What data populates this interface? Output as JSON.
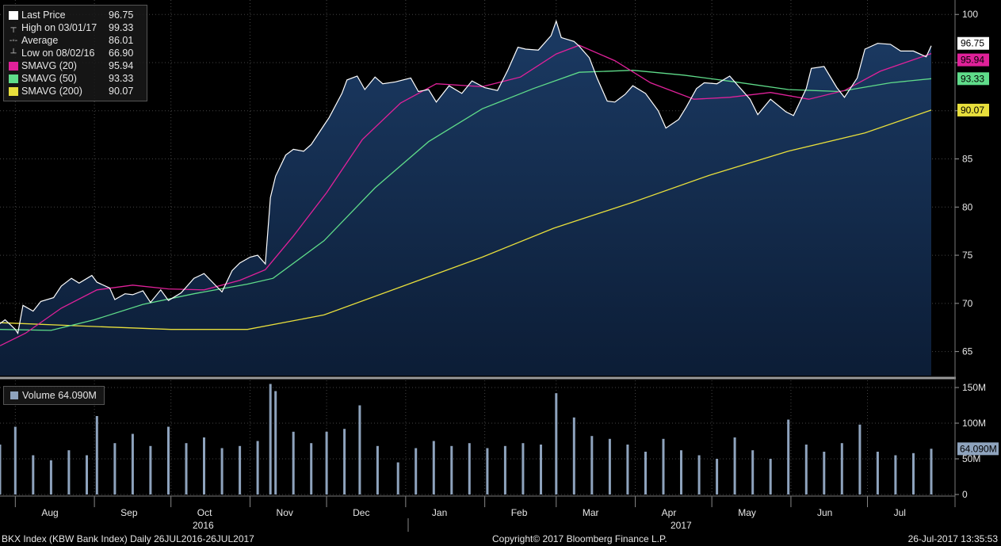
{
  "legend": {
    "last_price_label": "Last Price",
    "last_price_value": "96.75",
    "high_label": "High on 03/01/17",
    "high_value": "99.33",
    "average_label": "Average",
    "average_value": "86.01",
    "low_label": "Low on 08/02/16",
    "low_value": "66.90",
    "sma20_label": "SMAVG (20)",
    "sma20_value": "95.94",
    "sma50_label": "SMAVG (50)",
    "sma50_value": "93.33",
    "sma200_label": "SMAVG (200)",
    "sma200_value": "90.07"
  },
  "volume_legend": {
    "label": "Volume",
    "value": "64.090M"
  },
  "footer": {
    "left": "BKX Index (KBW Bank Index)  Daily 26JUL2016-26JUL2017",
    "center": "Copyright© 2017 Bloomberg Finance L.P.",
    "right": "26-Jul-2017 13:35:53"
  },
  "colors": {
    "price": "#ffffff",
    "area": "#14294a",
    "sma20": "#e0219a",
    "sma50": "#5fdc8a",
    "sma200": "#e8df3c",
    "volume": "#8ea3bd",
    "background": "#000000",
    "plot_background": "#0a0a0a"
  },
  "chart_data": {
    "type": "line",
    "title": "BKX Index (KBW Bank Index)",
    "x_range": [
      "2016-07-26",
      "2017-07-26"
    ],
    "months": [
      "Aug",
      "Sep",
      "Oct",
      "Nov",
      "Dec",
      "Jan",
      "Feb",
      "Mar",
      "Apr",
      "May",
      "Jun",
      "Jul"
    ],
    "years": [
      "2016",
      "2017"
    ],
    "price_axis": {
      "ylim": [
        62.5,
        101.5
      ],
      "ticks": [
        65,
        70,
        75,
        80,
        85,
        90,
        95,
        100
      ],
      "grid": true
    },
    "volume_axis": {
      "ylim": [
        0,
        160
      ],
      "ticks": [
        0,
        50,
        100,
        150
      ],
      "tick_labels": [
        "0",
        "50M",
        "100M",
        "150M"
      ],
      "unit": "M"
    },
    "axis_value_labels": [
      "96.75",
      "95.94",
      "93.33",
      "90.07"
    ],
    "volume_axis_value_label": "64.090M",
    "price": [
      [
        "2016-07-26",
        67.9
      ],
      [
        "2016-07-28",
        68.3
      ],
      [
        "2016-08-01",
        67.3
      ],
      [
        "2016-08-02",
        66.9
      ],
      [
        "2016-08-04",
        69.8
      ],
      [
        "2016-08-08",
        69.2
      ],
      [
        "2016-08-11",
        70.2
      ],
      [
        "2016-08-16",
        70.6
      ],
      [
        "2016-08-19",
        71.8
      ],
      [
        "2016-08-23",
        72.6
      ],
      [
        "2016-08-26",
        72.1
      ],
      [
        "2016-08-31",
        72.9
      ],
      [
        "2016-09-02",
        72.2
      ],
      [
        "2016-09-07",
        71.6
      ],
      [
        "2016-09-09",
        70.4
      ],
      [
        "2016-09-13",
        71.0
      ],
      [
        "2016-09-16",
        70.9
      ],
      [
        "2016-09-20",
        71.3
      ],
      [
        "2016-09-23",
        70.1
      ],
      [
        "2016-09-27",
        71.4
      ],
      [
        "2016-09-30",
        70.3
      ],
      [
        "2016-10-05",
        71.1
      ],
      [
        "2016-10-10",
        72.6
      ],
      [
        "2016-10-14",
        73.1
      ],
      [
        "2016-10-18",
        72.0
      ],
      [
        "2016-10-21",
        71.2
      ],
      [
        "2016-10-25",
        73.4
      ],
      [
        "2016-10-28",
        74.2
      ],
      [
        "2016-11-01",
        74.8
      ],
      [
        "2016-11-04",
        75.0
      ],
      [
        "2016-11-07",
        74.1
      ],
      [
        "2016-11-09",
        81.0
      ],
      [
        "2016-11-11",
        83.2
      ],
      [
        "2016-11-15",
        85.4
      ],
      [
        "2016-11-18",
        86.0
      ],
      [
        "2016-11-22",
        85.8
      ],
      [
        "2016-11-25",
        86.5
      ],
      [
        "2016-11-30",
        88.5
      ],
      [
        "2016-12-02",
        89.3
      ],
      [
        "2016-12-07",
        91.8
      ],
      [
        "2016-12-09",
        93.2
      ],
      [
        "2016-12-13",
        93.6
      ],
      [
        "2016-12-16",
        92.2
      ],
      [
        "2016-12-20",
        93.5
      ],
      [
        "2016-12-23",
        92.8
      ],
      [
        "2016-12-28",
        93.0
      ],
      [
        "2017-01-03",
        93.4
      ],
      [
        "2017-01-06",
        92.0
      ],
      [
        "2017-01-10",
        92.2
      ],
      [
        "2017-01-13",
        90.9
      ],
      [
        "2017-01-18",
        92.6
      ],
      [
        "2017-01-23",
        91.8
      ],
      [
        "2017-01-27",
        93.1
      ],
      [
        "2017-02-01",
        92.4
      ],
      [
        "2017-02-06",
        92.1
      ],
      [
        "2017-02-10",
        94.2
      ],
      [
        "2017-02-14",
        96.6
      ],
      [
        "2017-02-17",
        96.4
      ],
      [
        "2017-02-22",
        96.3
      ],
      [
        "2017-02-27",
        97.8
      ],
      [
        "2017-03-01",
        99.3
      ],
      [
        "2017-03-03",
        97.6
      ],
      [
        "2017-03-08",
        97.2
      ],
      [
        "2017-03-10",
        96.7
      ],
      [
        "2017-03-14",
        95.5
      ],
      [
        "2017-03-17",
        93.4
      ],
      [
        "2017-03-21",
        91.0
      ],
      [
        "2017-03-24",
        90.9
      ],
      [
        "2017-03-28",
        91.7
      ],
      [
        "2017-03-31",
        92.6
      ],
      [
        "2017-04-05",
        91.8
      ],
      [
        "2017-04-10",
        90.0
      ],
      [
        "2017-04-13",
        88.2
      ],
      [
        "2017-04-18",
        89.1
      ],
      [
        "2017-04-21",
        90.4
      ],
      [
        "2017-04-25",
        92.3
      ],
      [
        "2017-04-28",
        92.9
      ],
      [
        "2017-05-03",
        92.8
      ],
      [
        "2017-05-08",
        93.6
      ],
      [
        "2017-05-11",
        92.7
      ],
      [
        "2017-05-16",
        91.2
      ],
      [
        "2017-05-19",
        89.6
      ],
      [
        "2017-05-24",
        91.2
      ],
      [
        "2017-05-30",
        89.9
      ],
      [
        "2017-06-02",
        89.5
      ],
      [
        "2017-06-07",
        92.3
      ],
      [
        "2017-06-09",
        94.4
      ],
      [
        "2017-06-14",
        94.6
      ],
      [
        "2017-06-19",
        92.4
      ],
      [
        "2017-06-22",
        91.4
      ],
      [
        "2017-06-27",
        93.4
      ],
      [
        "2017-06-30",
        96.4
      ],
      [
        "2017-07-05",
        97.0
      ],
      [
        "2017-07-10",
        96.9
      ],
      [
        "2017-07-14",
        96.2
      ],
      [
        "2017-07-19",
        96.2
      ],
      [
        "2017-07-24",
        95.6
      ],
      [
        "2017-07-26",
        96.75
      ]
    ],
    "sma20": [
      [
        "2016-07-26",
        65.6
      ],
      [
        "2016-08-05",
        66.9
      ],
      [
        "2016-08-19",
        69.5
      ],
      [
        "2016-09-02",
        71.4
      ],
      [
        "2016-09-16",
        71.9
      ],
      [
        "2016-09-30",
        71.5
      ],
      [
        "2016-10-14",
        71.4
      ],
      [
        "2016-10-28",
        72.4
      ],
      [
        "2016-11-07",
        73.5
      ],
      [
        "2016-11-18",
        77.0
      ],
      [
        "2016-12-01",
        81.5
      ],
      [
        "2016-12-15",
        87.0
      ],
      [
        "2016-12-30",
        90.8
      ],
      [
        "2017-01-13",
        92.8
      ],
      [
        "2017-01-31",
        92.5
      ],
      [
        "2017-02-15",
        93.5
      ],
      [
        "2017-03-01",
        95.9
      ],
      [
        "2017-03-10",
        96.8
      ],
      [
        "2017-03-24",
        95.2
      ],
      [
        "2017-04-07",
        92.9
      ],
      [
        "2017-04-24",
        91.2
      ],
      [
        "2017-05-08",
        91.4
      ],
      [
        "2017-05-24",
        91.9
      ],
      [
        "2017-06-08",
        91.2
      ],
      [
        "2017-06-22",
        92.1
      ],
      [
        "2017-07-06",
        94.1
      ],
      [
        "2017-07-26",
        95.94
      ]
    ],
    "sma50": [
      [
        "2016-07-26",
        67.3
      ],
      [
        "2016-08-15",
        67.2
      ],
      [
        "2016-09-01",
        68.3
      ],
      [
        "2016-09-20",
        69.9
      ],
      [
        "2016-10-10",
        71.0
      ],
      [
        "2016-10-31",
        72.0
      ],
      [
        "2016-11-10",
        72.6
      ],
      [
        "2016-11-30",
        76.5
      ],
      [
        "2016-12-20",
        82.0
      ],
      [
        "2017-01-10",
        86.8
      ],
      [
        "2017-01-31",
        90.2
      ],
      [
        "2017-02-20",
        92.3
      ],
      [
        "2017-03-10",
        94.0
      ],
      [
        "2017-03-31",
        94.2
      ],
      [
        "2017-04-20",
        93.7
      ],
      [
        "2017-05-10",
        93.0
      ],
      [
        "2017-05-31",
        92.2
      ],
      [
        "2017-06-20",
        92.0
      ],
      [
        "2017-07-10",
        92.9
      ],
      [
        "2017-07-26",
        93.33
      ]
    ],
    "sma200": [
      [
        "2016-07-26",
        68.0
      ],
      [
        "2016-09-01",
        67.6
      ],
      [
        "2016-10-01",
        67.3
      ],
      [
        "2016-10-31",
        67.3
      ],
      [
        "2016-11-30",
        68.8
      ],
      [
        "2016-12-31",
        71.8
      ],
      [
        "2017-01-31",
        74.8
      ],
      [
        "2017-02-28",
        77.8
      ],
      [
        "2017-03-31",
        80.5
      ],
      [
        "2017-04-30",
        83.3
      ],
      [
        "2017-05-31",
        85.8
      ],
      [
        "2017-06-30",
        87.7
      ],
      [
        "2017-07-26",
        90.07
      ]
    ],
    "volume_m": [
      [
        "2016-07-26",
        70
      ],
      [
        "2016-08-01",
        95
      ],
      [
        "2016-08-08",
        55
      ],
      [
        "2016-08-15",
        48
      ],
      [
        "2016-08-22",
        62
      ],
      [
        "2016-08-29",
        55
      ],
      [
        "2016-09-02",
        110
      ],
      [
        "2016-09-09",
        72
      ],
      [
        "2016-09-16",
        85
      ],
      [
        "2016-09-23",
        68
      ],
      [
        "2016-09-30",
        95
      ],
      [
        "2016-10-07",
        72
      ],
      [
        "2016-10-14",
        80
      ],
      [
        "2016-10-21",
        65
      ],
      [
        "2016-10-28",
        68
      ],
      [
        "2016-11-04",
        75
      ],
      [
        "2016-11-09",
        155
      ],
      [
        "2016-11-11",
        145
      ],
      [
        "2016-11-18",
        88
      ],
      [
        "2016-11-25",
        72
      ],
      [
        "2016-12-01",
        88
      ],
      [
        "2016-12-08",
        92
      ],
      [
        "2016-12-14",
        125
      ],
      [
        "2016-12-21",
        68
      ],
      [
        "2016-12-29",
        45
      ],
      [
        "2017-01-05",
        65
      ],
      [
        "2017-01-12",
        75
      ],
      [
        "2017-01-19",
        68
      ],
      [
        "2017-01-26",
        72
      ],
      [
        "2017-02-02",
        65
      ],
      [
        "2017-02-09",
        68
      ],
      [
        "2017-02-16",
        72
      ],
      [
        "2017-02-23",
        70
      ],
      [
        "2017-03-01",
        142
      ],
      [
        "2017-03-08",
        108
      ],
      [
        "2017-03-15",
        82
      ],
      [
        "2017-03-22",
        78
      ],
      [
        "2017-03-29",
        70
      ],
      [
        "2017-04-05",
        60
      ],
      [
        "2017-04-12",
        78
      ],
      [
        "2017-04-19",
        62
      ],
      [
        "2017-04-26",
        55
      ],
      [
        "2017-05-03",
        50
      ],
      [
        "2017-05-10",
        80
      ],
      [
        "2017-05-17",
        62
      ],
      [
        "2017-05-24",
        50
      ],
      [
        "2017-05-31",
        105
      ],
      [
        "2017-06-07",
        70
      ],
      [
        "2017-06-14",
        60
      ],
      [
        "2017-06-21",
        72
      ],
      [
        "2017-06-28",
        98
      ],
      [
        "2017-07-05",
        60
      ],
      [
        "2017-07-12",
        55
      ],
      [
        "2017-07-19",
        58
      ],
      [
        "2017-07-26",
        64.09
      ]
    ]
  }
}
